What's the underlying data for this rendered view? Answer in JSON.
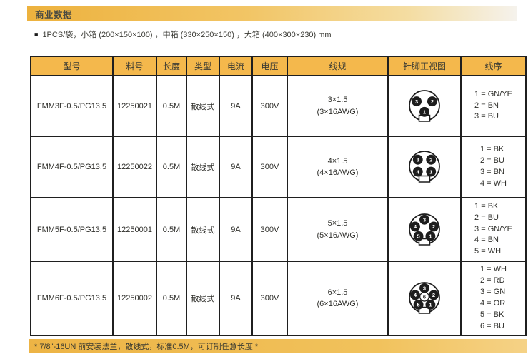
{
  "page": {
    "section_title": "商业数据",
    "packaging_note": "1PCS/袋，小箱 (200×150×100) ，中箱 (330×250×150) ，大箱 (400×300×230) mm",
    "footer_note": "* 7/8\"-16UN 前安装法兰，散线式，标准0.5M，可订制任意长度 *"
  },
  "colors": {
    "accent_gold": "#f4b84c",
    "bar_gradient_start": "#edb23e",
    "table_border": "#1f1f1f",
    "pin_fill": "#1d1d1d"
  },
  "table": {
    "headers": [
      "型号",
      "料号",
      "长度",
      "类型",
      "电流",
      "电压",
      "线规",
      "针脚正视图",
      "线序"
    ],
    "rows": [
      {
        "model": "FMM3F-0.5/PG13.5",
        "part_no": "12250021",
        "length": "0.5M",
        "type": "散线式",
        "current": "9A",
        "voltage": "300V",
        "wire_gauge_line1": "3×1.5",
        "wire_gauge_line2": "(3×16AWG)",
        "pins": [
          {
            "n": "3",
            "x": -0.52,
            "y": -0.28
          },
          {
            "n": "2",
            "x": 0.52,
            "y": -0.28
          },
          {
            "n": "1",
            "x": 0,
            "y": 0.42
          }
        ],
        "wire_order": [
          "1 = GN/YE",
          "2 = BN",
          "3 = BU"
        ]
      },
      {
        "model": "FMM4F-0.5/PG13.5",
        "part_no": "12250022",
        "length": "0.5M",
        "type": "散线式",
        "current": "9A",
        "voltage": "300V",
        "wire_gauge_line1": "4×1.5",
        "wire_gauge_line2": "(4×16AWG)",
        "pins": [
          {
            "n": "3",
            "x": -0.44,
            "y": -0.44
          },
          {
            "n": "2",
            "x": 0.44,
            "y": -0.44
          },
          {
            "n": "4",
            "x": -0.44,
            "y": 0.36
          },
          {
            "n": "1",
            "x": 0.44,
            "y": 0.36
          }
        ],
        "wire_order": [
          "1 = BK",
          "2 = BU",
          "3 = BN",
          "4 = WH"
        ]
      },
      {
        "model": "FMM5F-0.5/PG13.5",
        "part_no": "12250001",
        "length": "0.5M",
        "type": "散线式",
        "current": "9A",
        "voltage": "300V",
        "wire_gauge_line1": "5×1.5",
        "wire_gauge_line2": "(5×16AWG)",
        "pins": [
          {
            "n": "3",
            "x": 0,
            "y": -0.63
          },
          {
            "n": "4",
            "x": -0.62,
            "y": -0.17
          },
          {
            "n": "2",
            "x": 0.62,
            "y": -0.17
          },
          {
            "n": "5",
            "x": -0.4,
            "y": 0.47
          },
          {
            "n": "1",
            "x": 0.4,
            "y": 0.47
          }
        ],
        "wire_order": [
          "1 = BK",
          "2 = BU",
          "3 = GN/YE",
          "4 = BN",
          "5 = WH"
        ]
      },
      {
        "model": "FMM6F-0.5/PG13.5",
        "part_no": "12250002",
        "length": "0.5M",
        "type": "散线式",
        "current": "9A",
        "voltage": "300V",
        "wire_gauge_line1": "6×1.5",
        "wire_gauge_line2": "(6×16AWG)",
        "pins": [
          {
            "n": "3",
            "x": 0,
            "y": -0.63
          },
          {
            "n": "4",
            "x": -0.62,
            "y": -0.17
          },
          {
            "n": "2",
            "x": 0.62,
            "y": -0.17
          },
          {
            "n": "5",
            "x": -0.4,
            "y": 0.47
          },
          {
            "n": "1",
            "x": 0.4,
            "y": 0.47
          },
          {
            "n": "6",
            "x": 0,
            "y": -0.06,
            "open": true
          }
        ],
        "wire_order": [
          "1 = WH",
          "2 = RD",
          "3 = GN",
          "4 = OR",
          "5 = BK",
          "6 = BU"
        ]
      }
    ]
  }
}
